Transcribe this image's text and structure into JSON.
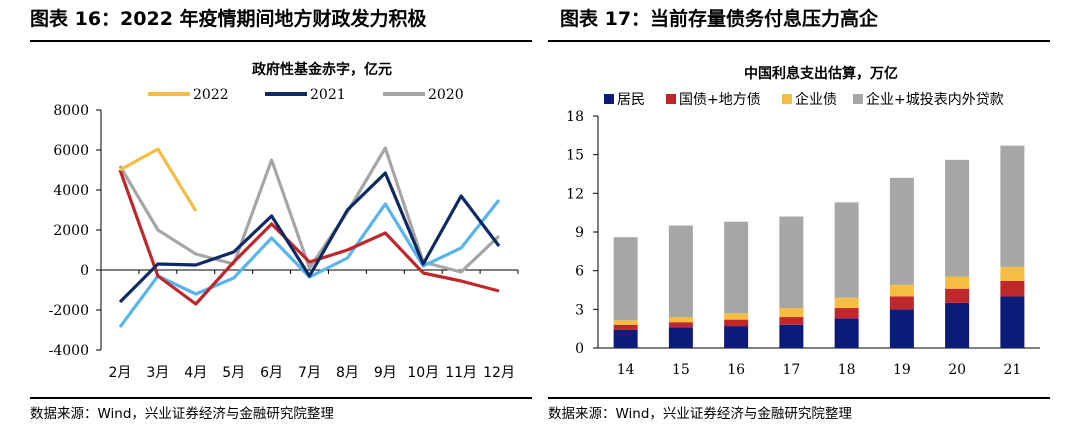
{
  "panel_left": {
    "title": "图表 16：2022 年疫情期间地方财政发力积极",
    "source": "数据来源：Wind，兴业证券经济与金融研究院整理"
  },
  "panel_right": {
    "title": "图表 17：当前存量债务付息压力高企",
    "source": "数据来源：Wind，兴业证券经济与金融研究院整理"
  },
  "chart_data": [
    {
      "type": "line",
      "title": "政府性基金赤字，亿元",
      "categories": [
        "2月",
        "3月",
        "4月",
        "5月",
        "6月",
        "7月",
        "8月",
        "9月",
        "10月",
        "11月",
        "12月"
      ],
      "ylim": [
        -4000,
        8000
      ],
      "yticks": [
        -4000,
        -2000,
        0,
        2000,
        4000,
        6000,
        8000
      ],
      "ytick_labels": [
        "-4000",
        "-2000",
        "0",
        "2000",
        "4000",
        "6000",
        "8000"
      ],
      "legend_position": "top",
      "series": [
        {
          "name": "2022",
          "color": "#f5bd42",
          "values": [
            5000,
            6050,
            2950,
            null,
            null,
            null,
            null,
            null,
            null,
            null,
            null
          ]
        },
        {
          "name": "2021",
          "color": "#0f2a63",
          "values": [
            -1600,
            300,
            250,
            900,
            2700,
            -300,
            3000,
            4850,
            300,
            3700,
            1200
          ]
        },
        {
          "name": "2020",
          "color": "#a6a6a6",
          "values": [
            5200,
            2000,
            800,
            300,
            5500,
            100,
            2900,
            6100,
            400,
            -100,
            1700
          ]
        },
        {
          "name": "",
          "color": "#58b5ec",
          "values": [
            -2850,
            -300,
            -1200,
            -400,
            1600,
            -350,
            600,
            3300,
            200,
            1100,
            3500
          ]
        },
        {
          "name": "",
          "color": "#c0272d",
          "values": [
            5000,
            -300,
            -1700,
            400,
            2300,
            400,
            1000,
            1850,
            -150,
            -550,
            -1050
          ]
        }
      ]
    },
    {
      "type": "bar",
      "stacked": true,
      "title": "中国利息支出估算，万亿",
      "categories": [
        "14",
        "15",
        "16",
        "17",
        "18",
        "19",
        "20",
        "21"
      ],
      "ylim": [
        0,
        18
      ],
      "yticks": [
        0,
        3,
        6,
        9,
        12,
        15,
        18
      ],
      "ytick_labels": [
        "0",
        "3",
        "6",
        "9",
        "12",
        "15",
        "18"
      ],
      "legend_position": "top",
      "series": [
        {
          "name": "居民",
          "color": "#0b1b7a",
          "values": [
            1.4,
            1.6,
            1.7,
            1.8,
            2.3,
            3.0,
            3.5,
            4.0
          ]
        },
        {
          "name": "国债+地方债",
          "color": "#c0272d",
          "values": [
            0.4,
            0.4,
            0.5,
            0.6,
            0.8,
            1.0,
            1.1,
            1.2
          ]
        },
        {
          "name": "企业债",
          "color": "#f5bd42",
          "values": [
            0.35,
            0.4,
            0.5,
            0.7,
            0.8,
            0.9,
            0.95,
            1.1
          ]
        },
        {
          "name": "企业+城投表内外贷款",
          "color": "#a6a6a6",
          "values": [
            6.45,
            7.1,
            7.1,
            7.1,
            7.4,
            8.3,
            9.05,
            9.4
          ]
        }
      ]
    }
  ]
}
